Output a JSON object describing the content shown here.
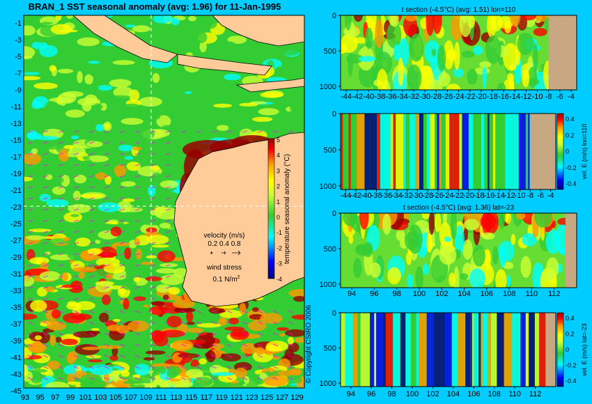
{
  "main_title": "BRAN_1 SST seasonal anomaly (avg: 1.96) for 11-Jan-1995",
  "copyright": "© Copyright CSIRO 2006",
  "colors": {
    "background": "#00ccff",
    "land": "#ffcc99",
    "seafloor": "#c8a882",
    "vector": "#ff00ff",
    "colormap": [
      "#000080",
      "#0000ff",
      "#00ffff",
      "#33cc33",
      "#ccff33",
      "#ffff00",
      "#ff9900",
      "#ff0000",
      "#990000"
    ]
  },
  "map": {
    "lat_ticks": [
      "-1",
      "-3",
      "-5",
      "-7",
      "-9",
      "-11",
      "-13",
      "-15",
      "-17",
      "-19",
      "-21",
      "-23",
      "-25",
      "-27",
      "-29",
      "-31",
      "-33",
      "-35",
      "-37",
      "-39",
      "-41",
      "-43",
      "-45"
    ],
    "lon_ticks": [
      "93",
      "95",
      "97",
      "99",
      "101",
      "103",
      "105",
      "107",
      "109",
      "111",
      "113",
      "115",
      "117",
      "119",
      "121",
      "123",
      "125",
      "127",
      "129"
    ],
    "colorbar_label": "temperature seasonal anomaly (°C)",
    "colorbar_ticks": [
      "5",
      "4",
      "3",
      "2",
      "1",
      "0",
      "-1",
      "-2",
      "-3",
      "-4"
    ],
    "velocity_label": "velocity (m/s)",
    "velocity_scale": "0.2 0.4 0.8",
    "wind_label": "wind stress",
    "wind_scale": "0.1 N/m",
    "wind_exp": "2"
  },
  "chart_data": [
    {
      "type": "heatmap",
      "title": "t section (-4.5°C) (avg: 1.51) lon=110",
      "x_ticks": [
        "-44",
        "-42",
        "-40",
        "-38",
        "-36",
        "-34",
        "-32",
        "-30",
        "-28",
        "-26",
        "-24",
        "-22",
        "-20",
        "-18",
        "-16",
        "-14",
        "-12",
        "-10",
        "-8",
        "-6",
        "-4"
      ],
      "y_ticks": [
        "0",
        "500",
        "1000"
      ],
      "xlim": [
        -45,
        -3
      ],
      "ylim": [
        0,
        1050
      ],
      "seafloor_from_x": -8
    },
    {
      "type": "heatmap",
      "title": "",
      "colorbar_label": "vel. E (m/s) lon=110",
      "colorbar_ticks": [
        "0.4",
        "0.2",
        "0",
        "-0.2",
        "-0.4"
      ],
      "x_ticks": [
        "-44",
        "-42",
        "-40",
        "-38",
        "-36",
        "-34",
        "-32",
        "-30",
        "-28",
        "-26",
        "-24",
        "-22",
        "-20",
        "-18",
        "-16",
        "-14",
        "-12",
        "-10",
        "-8",
        "-6",
        "-4"
      ],
      "y_ticks": [
        "0",
        "500",
        "1000"
      ],
      "xlim": [
        -45,
        -3
      ],
      "ylim": [
        0,
        1050
      ],
      "seafloor_from_x": -8
    },
    {
      "type": "heatmap",
      "title": "t section (-4.5°C) (avg: 1.36) lat=-23",
      "x_ticks": [
        "94",
        "96",
        "98",
        "100",
        "102",
        "104",
        "106",
        "108",
        "110",
        "112"
      ],
      "y_ticks": [
        "0",
        "500",
        "1000"
      ],
      "xlim": [
        93,
        114
      ],
      "ylim": [
        0,
        1050
      ],
      "seafloor_from_x": 113
    },
    {
      "type": "heatmap",
      "title": "",
      "colorbar_label": "vel. E (m/s) lat=-23",
      "colorbar_ticks": [
        "0.4",
        "0.2",
        "0",
        "-0.2",
        "-0.4"
      ],
      "x_ticks": [
        "94",
        "96",
        "98",
        "100",
        "102",
        "104",
        "106",
        "108",
        "110",
        "112"
      ],
      "y_ticks": [
        "0",
        "500",
        "1000"
      ],
      "xlim": [
        93,
        114
      ],
      "ylim": [
        0,
        1050
      ],
      "seafloor_from_x": 113
    }
  ]
}
